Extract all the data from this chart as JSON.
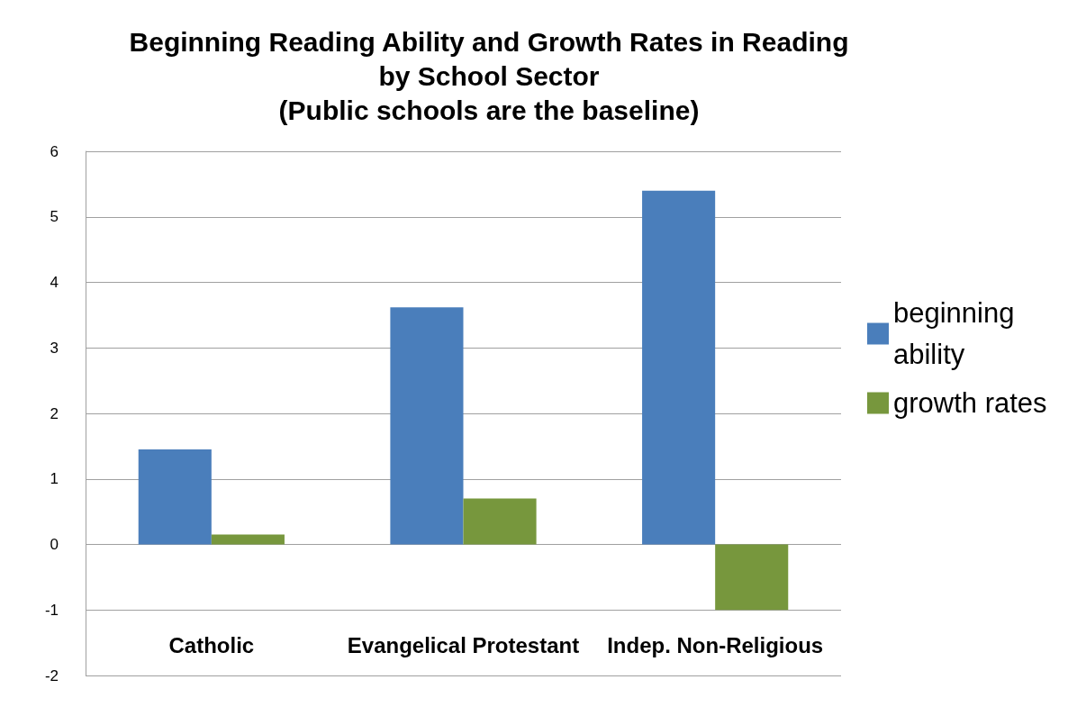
{
  "chart_data": {
    "type": "bar",
    "title": "Beginning Reading Ability and Growth Rates in Reading\nby School Sector\n(Public schools are the baseline)",
    "categories": [
      "Catholic",
      "Evangelical Protestant",
      "Indep. Non-Religious"
    ],
    "series": [
      {
        "name": "beginning ability",
        "color": "#4a7ebb",
        "values": [
          1.45,
          3.62,
          5.4
        ]
      },
      {
        "name": "growth rates",
        "color": "#77973d",
        "values": [
          0.15,
          0.7,
          -1.0
        ]
      }
    ],
    "ylim": [
      -2,
      6
    ],
    "yticks": [
      -2,
      -1,
      0,
      1,
      2,
      3,
      4,
      5,
      6
    ],
    "grid": "y",
    "legend": "right"
  }
}
